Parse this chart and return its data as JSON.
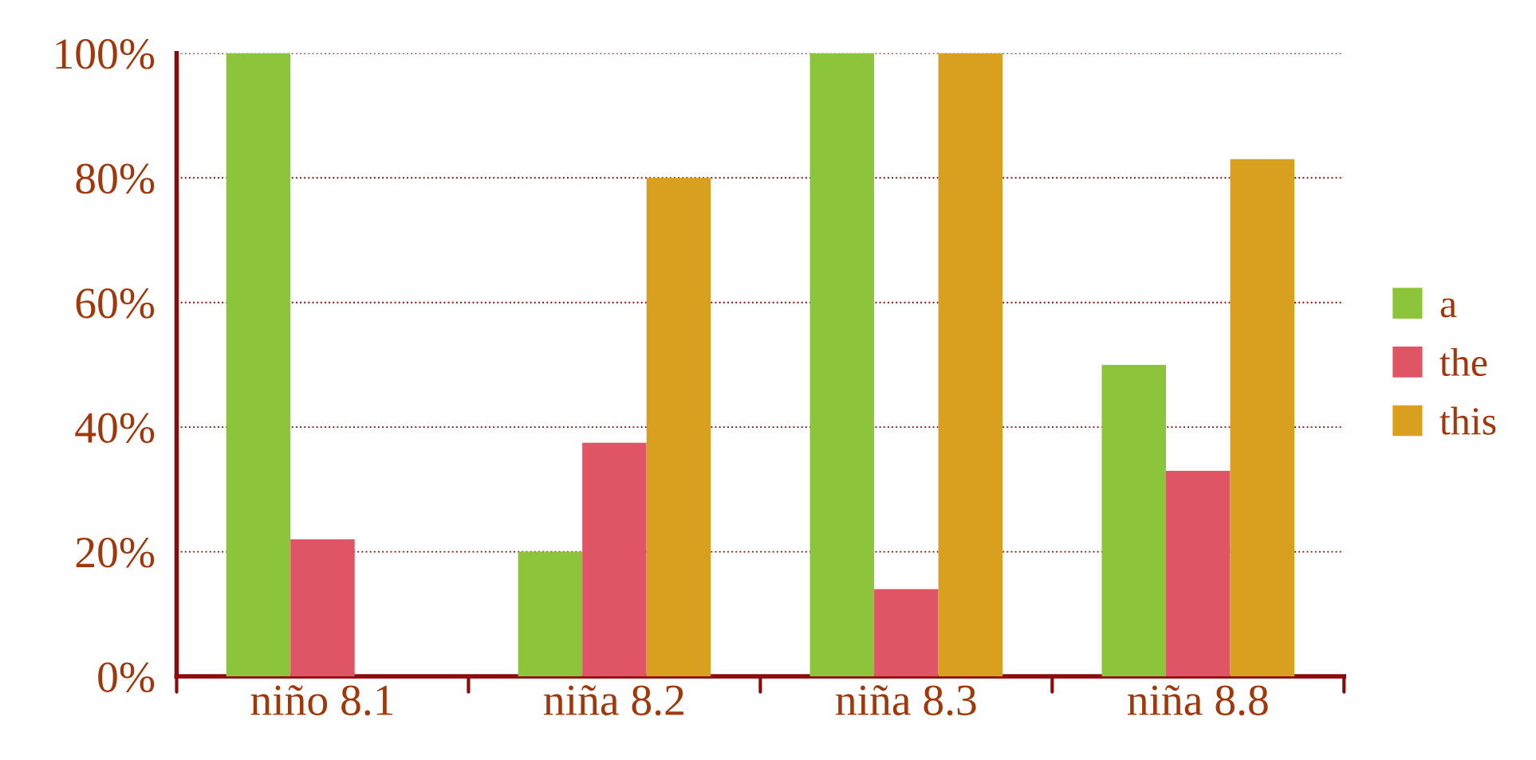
{
  "chart_data": {
    "type": "bar",
    "categories": [
      "niño 8.1",
      "niña 8.2",
      "niña 8.3",
      "niña 8.8"
    ],
    "series": [
      {
        "name": "a",
        "color": "#8cc43c",
        "values": [
          100,
          20,
          100,
          50
        ]
      },
      {
        "name": "the",
        "color": "#e05566",
        "values": [
          22,
          37.5,
          14,
          33
        ]
      },
      {
        "name": "this",
        "color": "#d9a020",
        "values": [
          null,
          80,
          100,
          83
        ]
      }
    ],
    "ylim": [
      0,
      100
    ],
    "yticks": [
      {
        "value": 0,
        "label": "0%"
      },
      {
        "value": 20,
        "label": "20%"
      },
      {
        "value": 40,
        "label": "40%"
      },
      {
        "value": 60,
        "label": "60%"
      },
      {
        "value": 80,
        "label": "80%"
      },
      {
        "value": 100,
        "label": "100%"
      }
    ],
    "grid": "y",
    "legend": "right"
  }
}
